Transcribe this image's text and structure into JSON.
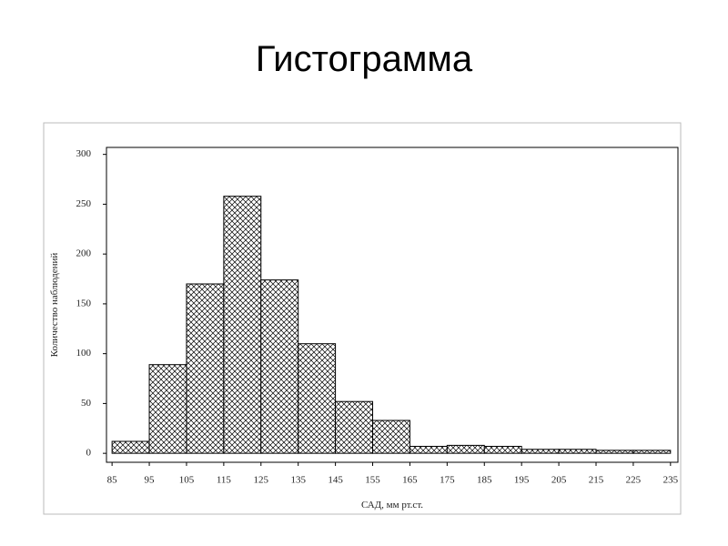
{
  "chart_data": {
    "type": "histogram",
    "title": "Гистограмма",
    "xlabel": "САД, мм рт.ст.",
    "ylabel": "Количество наблюдений",
    "bins": [
      85,
      95,
      105,
      115,
      125,
      135,
      145,
      155,
      165,
      175,
      185,
      195,
      205,
      215,
      225,
      235
    ],
    "counts": [
      12,
      89,
      170,
      258,
      174,
      110,
      52,
      33,
      7,
      8,
      7,
      4,
      4,
      3,
      3
    ],
    "color": "#000000",
    "xlim": [
      83.5,
      237
    ],
    "xticks": [
      85,
      95,
      105,
      115,
      125,
      135,
      145,
      155,
      165,
      175,
      185,
      195,
      205,
      215,
      225,
      235
    ],
    "ylim": [
      -9,
      307
    ],
    "yticks": [
      0,
      50,
      100,
      150,
      200,
      250,
      300
    ]
  }
}
